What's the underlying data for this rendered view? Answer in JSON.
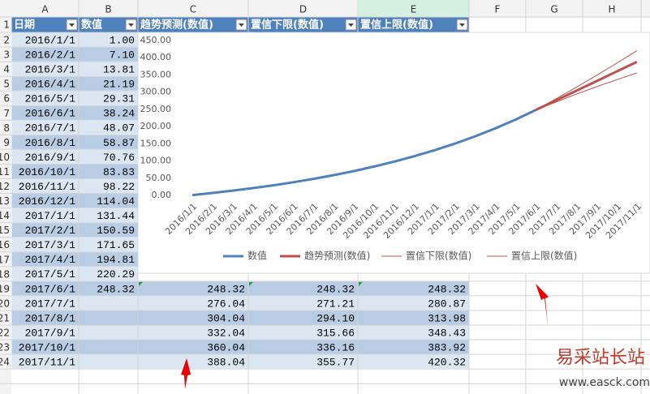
{
  "table": {
    "column_headers": [
      "A",
      "B",
      "C",
      "D",
      "E",
      "F",
      "G",
      "H"
    ],
    "row_numbers": [
      "1",
      "2",
      "3",
      "4",
      "5",
      "6",
      "7",
      "8",
      "9",
      "10",
      "11",
      "12",
      "13",
      "14",
      "15",
      "16",
      "17",
      "18",
      "19",
      "20",
      "21",
      "22",
      "23",
      "24"
    ],
    "rows": [
      [
        "日期",
        "数值",
        "趋势预测(数值)",
        "置信下限(数值)",
        "置信上限(数值)"
      ],
      [
        "2016/1/1",
        "1.00"
      ],
      [
        "2016/2/1",
        "7.10"
      ],
      [
        "2016/3/1",
        "13.81"
      ],
      [
        "2016/4/1",
        "21.19"
      ],
      [
        "2016/5/1",
        "29.31"
      ],
      [
        "2016/6/1",
        "38.24"
      ],
      [
        "2016/7/1",
        "48.07"
      ],
      [
        "2016/8/1",
        "58.87"
      ],
      [
        "2016/9/1",
        "70.76"
      ],
      [
        "2016/10/1",
        "83.83"
      ],
      [
        "2016/11/1",
        "98.22"
      ],
      [
        "2016/12/1",
        "114.04"
      ],
      [
        "2017/1/1",
        "131.44"
      ],
      [
        "2017/2/1",
        "150.59"
      ],
      [
        "2017/3/1",
        "171.65"
      ],
      [
        "2017/4/1",
        "194.81"
      ],
      [
        "2017/5/1",
        "220.29"
      ],
      [
        "2017/6/1",
        "248.32",
        "248.32",
        "248.32",
        "248.32"
      ],
      [
        "2017/7/1",
        null,
        "276.04",
        "271.21",
        "280.87"
      ],
      [
        "2017/8/1",
        null,
        "304.04",
        "294.10",
        "313.98"
      ],
      [
        "2017/9/1",
        null,
        "332.04",
        "315.66",
        "348.43"
      ],
      [
        "2017/10/1",
        null,
        "360.04",
        "336.16",
        "383.92"
      ],
      [
        "2017/11/1",
        null,
        "388.04",
        "355.77",
        "420.32"
      ]
    ]
  },
  "chart_data": {
    "type": "line",
    "categories": [
      "2016/1/1",
      "2016/2/1",
      "2016/3/1",
      "2016/4/1",
      "2016/5/1",
      "2016/6/1",
      "2016/7/1",
      "2016/8/1",
      "2016/9/1",
      "2016/10/1",
      "2016/11/1",
      "2016/12/1",
      "2017/1/1",
      "2017/2/1",
      "2017/3/1",
      "2017/4/1",
      "2017/5/1",
      "2017/6/1",
      "2017/7/1",
      "2017/8/1",
      "2017/9/1",
      "2017/10/1",
      "2017/11/1"
    ],
    "series": [
      {
        "name": "数值",
        "color": "#4f81bd",
        "width": 3,
        "values": [
          1.0,
          7.1,
          13.81,
          21.19,
          29.31,
          38.24,
          48.07,
          58.87,
          70.76,
          83.83,
          98.22,
          114.04,
          131.44,
          150.59,
          171.65,
          194.81,
          220.29,
          248.32,
          null,
          null,
          null,
          null,
          null
        ]
      },
      {
        "name": "趋势预测(数值)",
        "color": "#c0504d",
        "width": 3,
        "values": [
          null,
          null,
          null,
          null,
          null,
          null,
          null,
          null,
          null,
          null,
          null,
          null,
          null,
          null,
          null,
          null,
          null,
          248.32,
          276.04,
          304.04,
          332.04,
          360.04,
          388.04
        ]
      },
      {
        "name": "置信下限(数值)",
        "color": "#c0504d",
        "width": 1,
        "values": [
          null,
          null,
          null,
          null,
          null,
          null,
          null,
          null,
          null,
          null,
          null,
          null,
          null,
          null,
          null,
          null,
          null,
          248.32,
          271.21,
          294.1,
          315.66,
          336.16,
          355.77
        ]
      },
      {
        "name": "置信上限(数值)",
        "color": "#c0504d",
        "width": 1,
        "values": [
          null,
          null,
          null,
          null,
          null,
          null,
          null,
          null,
          null,
          null,
          null,
          null,
          null,
          null,
          null,
          null,
          null,
          248.32,
          280.87,
          313.98,
          348.43,
          383.92,
          420.32
        ]
      }
    ],
    "ylim": [
      0,
      450
    ],
    "yticks": [
      {
        "value": 0,
        "label": "0.00"
      },
      {
        "value": 50,
        "label": "50.00"
      },
      {
        "value": 100,
        "label": "100.00"
      },
      {
        "value": 150,
        "label": "150.00"
      },
      {
        "value": 200,
        "label": "200.00"
      },
      {
        "value": 250,
        "label": "250.00"
      },
      {
        "value": 300,
        "label": "300.00"
      },
      {
        "value": 350,
        "label": "350.00"
      },
      {
        "value": 400,
        "label": "400.00"
      },
      {
        "value": 450,
        "label": "450.00"
      }
    ],
    "legend": "bottom"
  },
  "watermark": {
    "title": "易采站长站",
    "url": "www.easck.com"
  }
}
